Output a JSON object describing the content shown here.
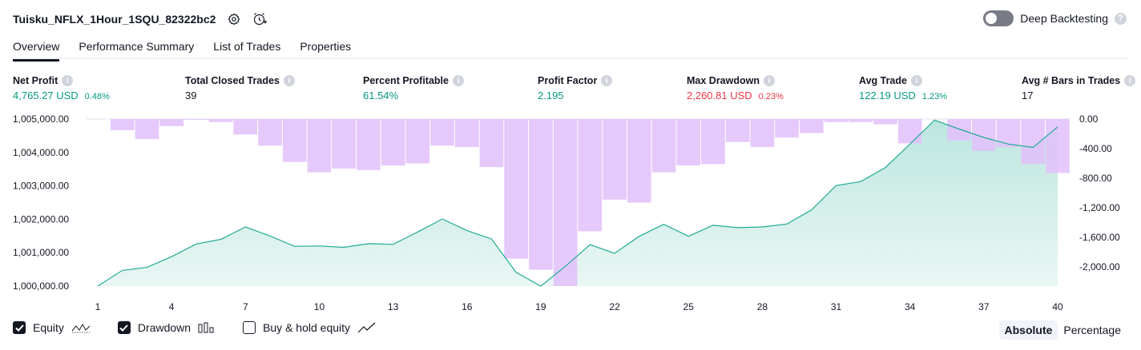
{
  "header": {
    "strategy_name": "Tuisku_NFLX_1Hour_1SQU_82322bc2",
    "deep_backtesting_label": "Deep Backtesting",
    "help_glyph": "?"
  },
  "tabs": [
    {
      "label": "Overview",
      "active": true
    },
    {
      "label": "Performance Summary",
      "active": false
    },
    {
      "label": "List of Trades",
      "active": false
    },
    {
      "label": "Properties",
      "active": false
    }
  ],
  "metrics": {
    "net_profit": {
      "label": "Net Profit",
      "value": "4,765.27 USD",
      "sub": "0.48%"
    },
    "total_closed_trades": {
      "label": "Total Closed Trades",
      "value": "39"
    },
    "percent_profitable": {
      "label": "Percent Profitable",
      "value": "61.54%"
    },
    "profit_factor": {
      "label": "Profit Factor",
      "value": "2.195"
    },
    "max_drawdown": {
      "label": "Max Drawdown",
      "value": "2,260.81 USD",
      "sub": "0.23%"
    },
    "avg_trade": {
      "label": "Avg Trade",
      "value": "122.19 USD",
      "sub": "1.23%"
    },
    "avg_bars": {
      "label": "Avg # Bars in Trades",
      "value": "17"
    },
    "info_glyph": "i"
  },
  "colors": {
    "positive": "#089981",
    "negative": "#f23645",
    "equity_line": "#22ab94",
    "drawdown_bar": "#e1c2fa",
    "toggle_off": "#787b86"
  },
  "chart_data": {
    "type": "area",
    "x": [
      1,
      2,
      3,
      4,
      5,
      6,
      7,
      8,
      9,
      10,
      11,
      12,
      13,
      14,
      15,
      16,
      17,
      18,
      19,
      20,
      21,
      22,
      23,
      24,
      25,
      26,
      27,
      28,
      29,
      30,
      31,
      32,
      33,
      34,
      35,
      36,
      37,
      38,
      39,
      40
    ],
    "xticks": [
      "1",
      "4",
      "7",
      "10",
      "13",
      "16",
      "19",
      "22",
      "25",
      "28",
      "31",
      "34",
      "37",
      "40"
    ],
    "left_axis": {
      "ticks": [
        "1,005,000.00",
        "1,004,000.00",
        "1,003,000.00",
        "1,002,000.00",
        "1,001,000.00",
        "1,000,000.00"
      ],
      "ylim": [
        1000000,
        1005000
      ]
    },
    "right_axis": {
      "ticks": [
        "0.00",
        "-400.00",
        "-800.00",
        "-1,200.00",
        "-1,600.00",
        "-2,000.00"
      ],
      "ylim": [
        -2260.81,
        0
      ]
    },
    "series": [
      {
        "name": "Equity",
        "type": "area",
        "values": [
          1000000,
          1000470,
          1000560,
          1000880,
          1001260,
          1001400,
          1001770,
          1001500,
          1001190,
          1001200,
          1001160,
          1001270,
          1001250,
          1001620,
          1002010,
          1001660,
          1001410,
          1000410,
          1000000,
          1000590,
          1001240,
          1000980,
          1001490,
          1001850,
          1001490,
          1001820,
          1001750,
          1001770,
          1001860,
          1002280,
          1003010,
          1003130,
          1003550,
          1004250,
          1004970,
          1004700,
          1004450,
          1004250,
          1004150,
          1004765
        ]
      },
      {
        "name": "Drawdown",
        "type": "bar",
        "values": [
          0,
          -150,
          -270,
          -95,
          -10,
          -40,
          -210,
          -360,
          -580,
          -720,
          -670,
          -690,
          -630,
          -600,
          -360,
          -380,
          -650,
          -1890,
          -2040,
          -2260.81,
          -1520,
          -1090,
          -1130,
          -720,
          -630,
          -610,
          -310,
          -380,
          -250,
          -190,
          -40,
          -40,
          -70,
          -330,
          0,
          -290,
          -430,
          -380,
          -610,
          -730
        ]
      }
    ]
  },
  "legend": {
    "equity": {
      "label": "Equity",
      "checked": true
    },
    "drawdown": {
      "label": "Drawdown",
      "checked": true
    },
    "buy_hold": {
      "label": "Buy & hold equity",
      "checked": false
    }
  },
  "mode": {
    "absolute_label": "Absolute",
    "percentage_label": "Percentage",
    "selected": "Absolute"
  }
}
